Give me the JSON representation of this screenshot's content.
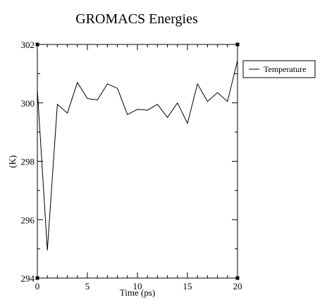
{
  "chart_data": {
    "type": "line",
    "title": "GROMACS Energies",
    "xlabel": "Time (ps)",
    "ylabel": "(K)",
    "xlim": [
      0,
      20
    ],
    "ylim": [
      294,
      302
    ],
    "xticks": [
      0,
      5,
      10,
      15,
      20
    ],
    "xtick_labels": [
      "0",
      "5",
      "10",
      "15",
      "20"
    ],
    "yticks": [
      294,
      296,
      298,
      300,
      302
    ],
    "ytick_labels": [
      "294",
      "296",
      "298",
      "300",
      "302"
    ],
    "grid": false,
    "legend_position": "outside-top-right",
    "series": [
      {
        "name": "Temperature",
        "color": "#000000",
        "x": [
          0,
          1,
          2,
          3,
          4,
          5,
          6,
          7,
          8,
          9,
          10,
          11,
          12,
          13,
          14,
          15,
          16,
          17,
          18,
          19,
          20
        ],
        "y": [
          300.45,
          294.95,
          299.95,
          299.65,
          300.7,
          300.15,
          300.1,
          300.65,
          300.5,
          299.6,
          299.78,
          299.75,
          299.95,
          299.5,
          300.0,
          299.3,
          300.65,
          300.05,
          300.35,
          300.05,
          301.45
        ]
      }
    ]
  }
}
